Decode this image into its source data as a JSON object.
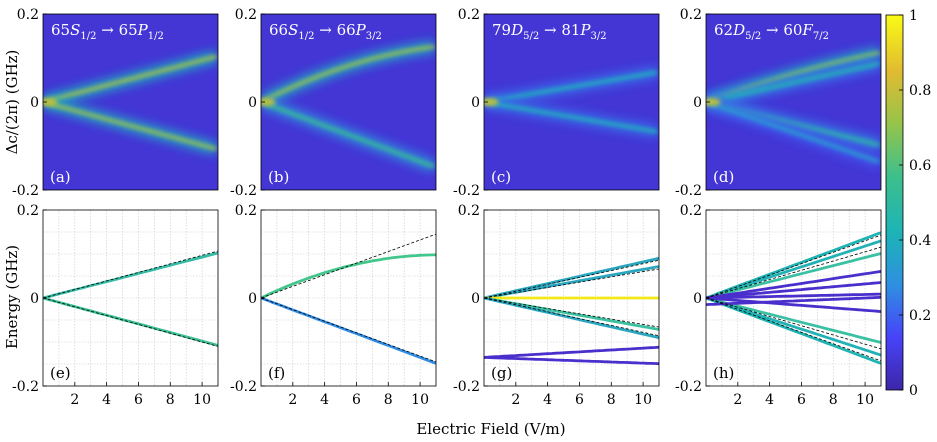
{
  "figure": {
    "xlabel": "Electric Field (V/m)",
    "ylabel_top": "Δc/(2π) (GHz)",
    "ylabel_bottom": "Energy (GHz)"
  },
  "chart_data": {
    "type": "heatmap",
    "x_range": [
      0,
      11
    ],
    "y_range": [
      -0.2,
      0.2
    ],
    "x_ticks": [
      2,
      4,
      6,
      8,
      10
    ],
    "y_ticks_top": [
      "0.2",
      "0",
      "-0.2"
    ],
    "y_ticks_bottom": [
      "0.2",
      "0",
      "-0.2"
    ],
    "colorbar": {
      "range": [
        0,
        1
      ],
      "ticks": [
        "0",
        "0.2",
        "0.4",
        "0.6",
        "0.8",
        "1"
      ],
      "colormap": [
        "#3e26a8",
        "#4743f8",
        "#2f8fe1",
        "#1cb4b6",
        "#3dbf8c",
        "#96c44a",
        "#e1bb31",
        "#f9fb15"
      ]
    },
    "panels": [
      {
        "column": 1,
        "transition": "65S1/2 → 65P1/2",
        "title_parts": {
          "a": "65",
          "b": "S",
          "c": "1/2",
          "d": "→ 65",
          "e": "P",
          "f": "1/2"
        },
        "letter_top": "(a)",
        "letter_bottom": "(e)",
        "heatmap_branches": [
          {
            "slope_ghz_per_vm": 0.0095,
            "curve": 0,
            "peak": 0.75
          },
          {
            "slope_ghz_per_vm": -0.0098,
            "curve": 0,
            "peak": 0.72
          }
        ],
        "series": [
          {
            "name": "upper",
            "slope": 0.0093,
            "curve": 0,
            "color": "#34bca5"
          },
          {
            "name": "lower",
            "slope": -0.0098,
            "curve": 0,
            "color": "#3bbf93"
          }
        ],
        "asymptotes": [
          {
            "slope": 0.0097
          },
          {
            "slope": -0.01
          }
        ]
      },
      {
        "column": 2,
        "transition": "66S1/2 → 66P3/2",
        "title_parts": {
          "a": "66",
          "b": "S",
          "c": "1/2",
          "d": "→ 66",
          "e": "P",
          "f": "3/2"
        },
        "letter_top": "(b)",
        "letter_bottom": "(f)",
        "heatmap_branches": [
          {
            "slope_ghz_per_vm": 0.0185,
            "curve": -0.00064,
            "peak": 0.72
          },
          {
            "slope_ghz_per_vm": -0.0135,
            "curve": 0,
            "peak": 0.55
          }
        ],
        "series": [
          {
            "name": "upper",
            "slope": 0.0175,
            "curve": -0.00078,
            "color": "#41c68c"
          },
          {
            "name": "lower",
            "slope": -0.0135,
            "curve": 0,
            "color": "#2f8de4"
          }
        ],
        "asymptotes": [
          {
            "slope": 0.0132
          },
          {
            "slope": -0.0132
          }
        ]
      },
      {
        "column": 3,
        "transition": "79D5/2 → 81P3/2",
        "title_parts": {
          "a": "79",
          "b": "D",
          "c": "5/2",
          "d": "→ 81",
          "e": "P",
          "f": "3/2"
        },
        "letter_top": "(c)",
        "letter_bottom": "(g)",
        "heatmap_branches": [
          {
            "slope_ghz_per_vm": 0,
            "curve": 0,
            "peak": 0.95
          },
          {
            "slope_ghz_per_vm": 0.0062,
            "curve": 0,
            "peak": 0.42
          },
          {
            "slope_ghz_per_vm": -0.0062,
            "curve": 0,
            "peak": 0.42
          }
        ],
        "series": [
          {
            "name": "s1",
            "slope": 0.0082,
            "curve": 0,
            "color": "#2aa7bf"
          },
          {
            "name": "s2",
            "slope": 0.0065,
            "curve": 0,
            "color": "#2aa7bf"
          },
          {
            "name": "s3",
            "slope": 0,
            "curve": 0,
            "color": "#f3e81a"
          },
          {
            "name": "s4",
            "slope": -0.0065,
            "curve": 0,
            "color": "#3cc0a0"
          },
          {
            "name": "s5",
            "slope": -0.0082,
            "curve": 0,
            "color": "#2aa7bf"
          },
          {
            "name": "s6",
            "offset": -0.135,
            "slope": -0.0013,
            "curve": 0,
            "color": "#4a2fcc"
          },
          {
            "name": "s7",
            "offset": -0.135,
            "slope": 0.0021,
            "curve": 0,
            "color": "#4a2fcc"
          }
        ],
        "asymptotes": [
          {
            "slope": 0.0078
          },
          {
            "slope": 0.006
          },
          {
            "slope": -0.006
          },
          {
            "slope": -0.0078
          }
        ]
      },
      {
        "column": 4,
        "transition": "62D5/2 → 60F7/2",
        "title_parts": {
          "a": "62",
          "b": "D",
          "c": "5/2",
          "d": "→ 60",
          "e": "F",
          "f": "7/2"
        },
        "letter_top": "(d)",
        "letter_bottom": "(h)",
        "heatmap_branches": [
          {
            "slope_ghz_per_vm": 0.013,
            "curve": -0.00025,
            "peak": 0.7
          },
          {
            "slope_ghz_per_vm": 0.008,
            "curve": 0,
            "peak": 0.45
          },
          {
            "slope_ghz_per_vm": -0.009,
            "curve": 0,
            "peak": 0.5
          },
          {
            "slope_ghz_per_vm": -0.0125,
            "curve": 0,
            "peak": 0.35
          }
        ],
        "series": [
          {
            "name": "c1",
            "slope": 0.0135,
            "curve": 0,
            "color": "#1fb3b3"
          },
          {
            "name": "c2",
            "slope": 0.0118,
            "curve": 0,
            "color": "#22b1b5"
          },
          {
            "name": "c3",
            "slope": 0.0092,
            "curve": 0,
            "color": "#3cc0a4"
          },
          {
            "name": "c4",
            "slope": -0.0092,
            "curve": 0,
            "color": "#3cc0a4"
          },
          {
            "name": "c5",
            "slope": -0.0118,
            "curve": 0,
            "color": "#22b1b5"
          },
          {
            "name": "c6",
            "slope": -0.0135,
            "curve": 0,
            "color": "#1fb3b3"
          },
          {
            "name": "d1",
            "slope": 0.0055,
            "curve": 0,
            "color": "#4a2fcc"
          },
          {
            "name": "d2",
            "slope": 0.0032,
            "curve": 0,
            "color": "#4a2fcc"
          },
          {
            "name": "d3",
            "slope": 0.0008,
            "curve": 0,
            "color": "#4a2fcc"
          },
          {
            "name": "d4",
            "slope": -0.0028,
            "curve": 0,
            "color": "#4a2fcc"
          },
          {
            "name": "d5",
            "offset": -0.015,
            "slope": 0.0015,
            "curve": 0,
            "color": "#4a2fcc"
          }
        ],
        "asymptotes": [
          {
            "slope": 0.013
          },
          {
            "slope": 0.0105
          },
          {
            "slope": -0.0105
          },
          {
            "slope": -0.013
          }
        ]
      }
    ]
  }
}
